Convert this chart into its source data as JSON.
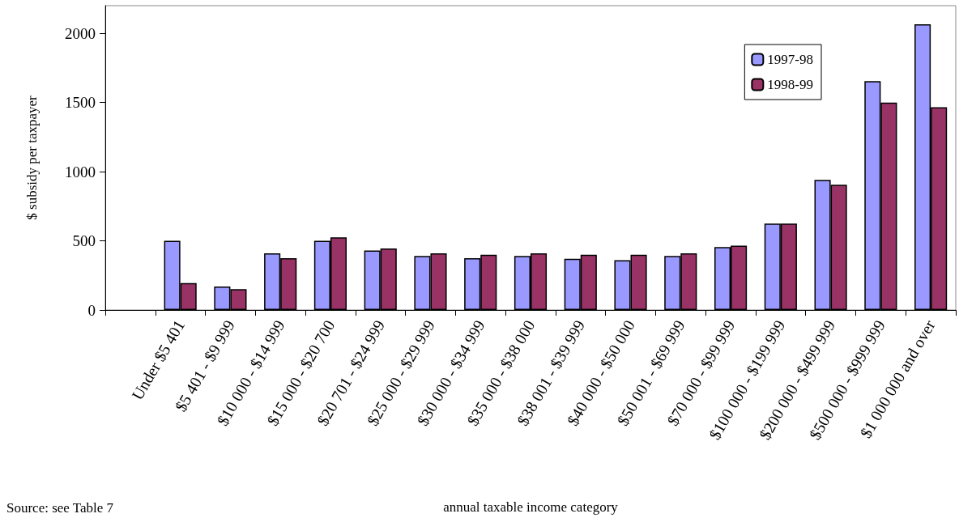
{
  "chart_data": {
    "type": "bar",
    "ylabel": "$ subsidy per taxpayer",
    "xlabel": "annual taxable income category",
    "annotations": [
      "Source: see Table 7"
    ],
    "categories": [
      null,
      "Under $5 401",
      "$5 401 - $9 999",
      "$10 000 - $14 999",
      "$15 000 - $20 700",
      "$20 701 - $24 999",
      "$25 000 - $29 999",
      "$30 000 - $34 999",
      "$35 000 - $38 000",
      "$38 001 - $39 999",
      "$40 000 - $50 000",
      "$50 001 - $69 999",
      "$70 000 - $99 999",
      "$100 000 - $199 999",
      "$200 000 - $499 999",
      "$500 000 - $999 999",
      "$1 000 000 and over"
    ],
    "series": [
      {
        "name": "1997-98",
        "color": "#9999ff",
        "values": [
          null,
          500,
          170,
          410,
          500,
          430,
          390,
          375,
          390,
          370,
          360,
          390,
          455,
          625,
          940,
          1655,
          2065
        ]
      },
      {
        "name": "1998-99",
        "color": "#993366",
        "values": [
          null,
          195,
          150,
          375,
          525,
          445,
          410,
          400,
          410,
          400,
          400,
          410,
          465,
          625,
          905,
          1500,
          1465
        ]
      }
    ],
    "ylim": [
      0,
      2200
    ],
    "yticks": [
      0,
      500,
      1000,
      1500,
      2000
    ],
    "grid": false,
    "legend": "top right"
  }
}
